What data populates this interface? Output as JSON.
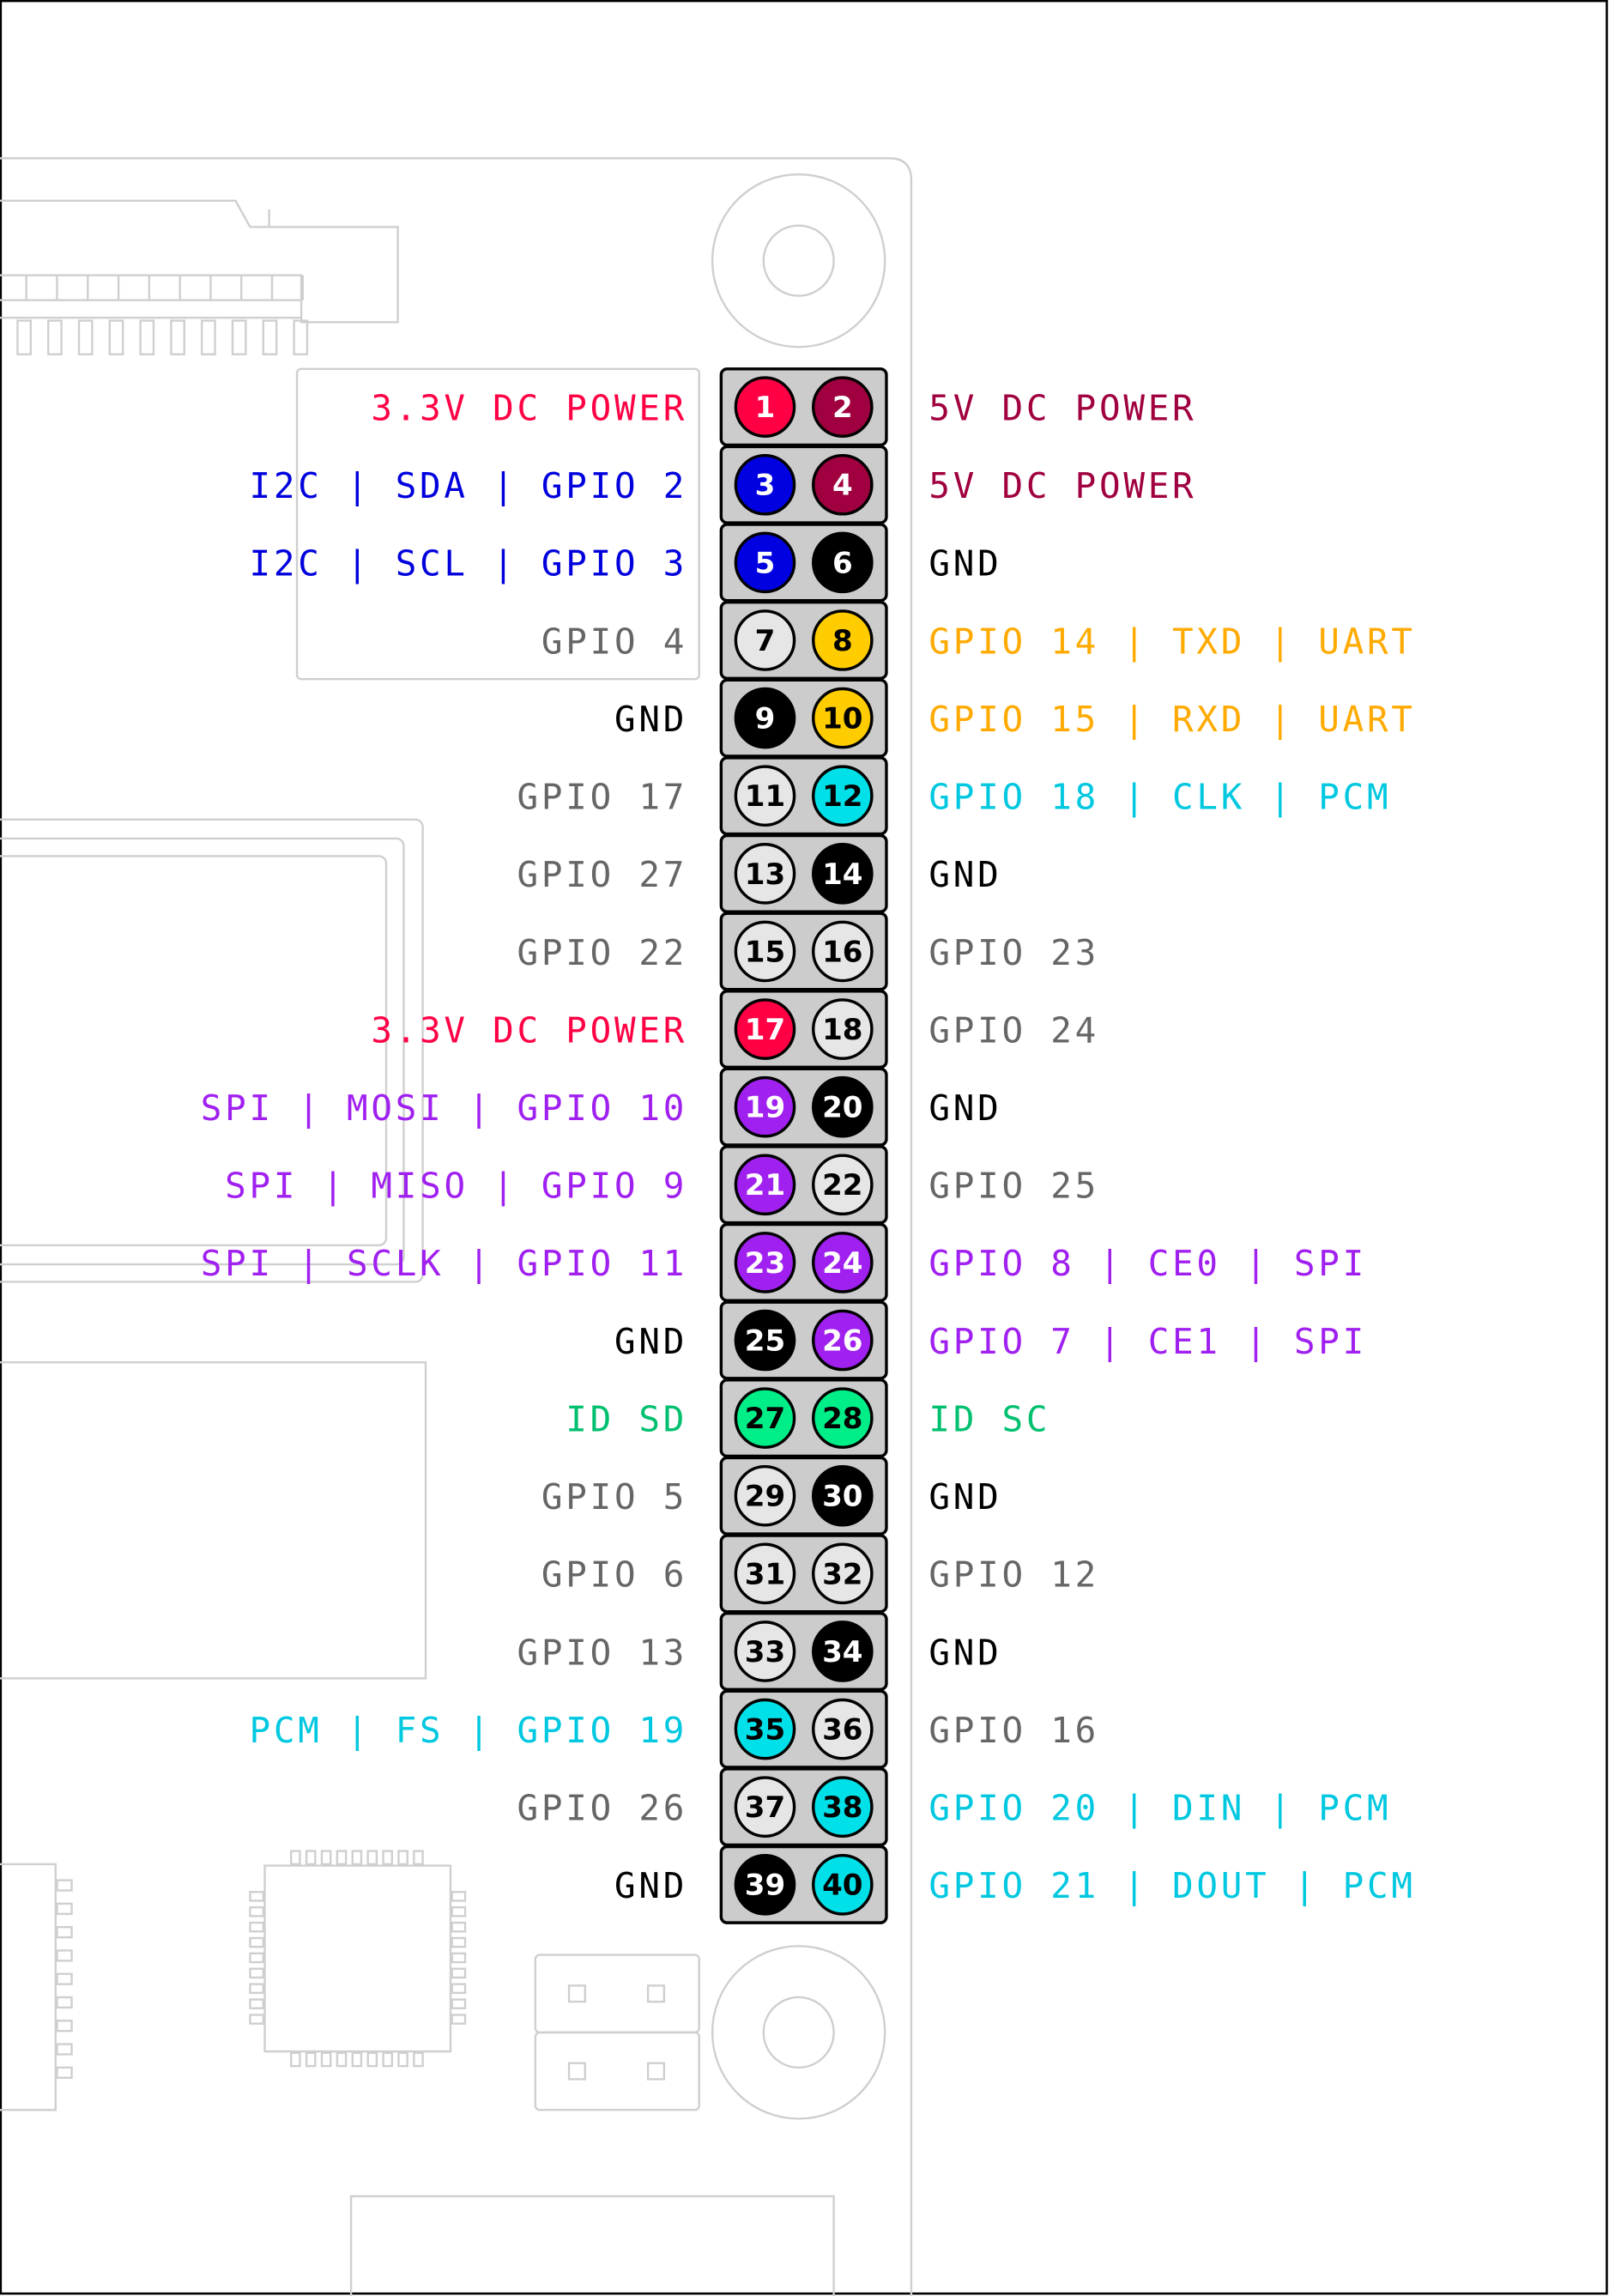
{
  "colors": {
    "power33": "#ff0044",
    "power5": "#a0003f",
    "i2c": "#0000e0",
    "gnd": "#000000",
    "gpio": "#e6e6e6",
    "uart": "#ffcc00",
    "pcm": "#00e0e8",
    "spi": "#a020f0",
    "id": "#00ee88",
    "header_bg": "#cccccc"
  },
  "text_colors": {
    "power33": "#ff0044",
    "power5": "#a0003f",
    "i2c": "#0000dd",
    "gnd": "#000000",
    "gpio": "#666666",
    "uart": "#ffaa00",
    "pcm": "#00c8e0",
    "spi": "#a020f0",
    "id": "#00c070"
  },
  "pins": [
    {
      "left": {
        "num": "1",
        "label": "3.3V DC POWER",
        "type": "power33"
      },
      "right": {
        "num": "2",
        "label": "5V DC POWER",
        "type": "power5"
      }
    },
    {
      "left": {
        "num": "3",
        "label": "I2C | SDA | GPIO 2",
        "type": "i2c"
      },
      "right": {
        "num": "4",
        "label": "5V DC POWER",
        "type": "power5"
      }
    },
    {
      "left": {
        "num": "5",
        "label": "I2C | SCL | GPIO 3",
        "type": "i2c"
      },
      "right": {
        "num": "6",
        "label": "GND",
        "type": "gnd"
      }
    },
    {
      "left": {
        "num": "7",
        "label": "GPIO 4",
        "type": "gpio"
      },
      "right": {
        "num": "8",
        "label": "GPIO 14 | TXD | UART",
        "type": "uart"
      }
    },
    {
      "left": {
        "num": "9",
        "label": "GND",
        "type": "gnd"
      },
      "right": {
        "num": "10",
        "label": "GPIO 15 | RXD | UART",
        "type": "uart"
      }
    },
    {
      "left": {
        "num": "11",
        "label": "GPIO 17",
        "type": "gpio"
      },
      "right": {
        "num": "12",
        "label": "GPIO 18 | CLK | PCM",
        "type": "pcm"
      }
    },
    {
      "left": {
        "num": "13",
        "label": "GPIO 27",
        "type": "gpio"
      },
      "right": {
        "num": "14",
        "label": "GND",
        "type": "gnd"
      }
    },
    {
      "left": {
        "num": "15",
        "label": "GPIO 22",
        "type": "gpio"
      },
      "right": {
        "num": "16",
        "label": "GPIO 23",
        "type": "gpio"
      }
    },
    {
      "left": {
        "num": "17",
        "label": "3.3V DC POWER",
        "type": "power33"
      },
      "right": {
        "num": "18",
        "label": "GPIO 24",
        "type": "gpio"
      }
    },
    {
      "left": {
        "num": "19",
        "label": "SPI | MOSI | GPIO 10",
        "type": "spi"
      },
      "right": {
        "num": "20",
        "label": "GND",
        "type": "gnd"
      }
    },
    {
      "left": {
        "num": "21",
        "label": "SPI | MISO | GPIO 9",
        "type": "spi"
      },
      "right": {
        "num": "22",
        "label": "GPIO 25",
        "type": "gpio"
      }
    },
    {
      "left": {
        "num": "23",
        "label": "SPI | SCLK | GPIO 11",
        "type": "spi"
      },
      "right": {
        "num": "24",
        "label": "GPIO 8 | CE0 | SPI",
        "type": "spi"
      }
    },
    {
      "left": {
        "num": "25",
        "label": "GND",
        "type": "gnd"
      },
      "right": {
        "num": "26",
        "label": "GPIO 7 | CE1 | SPI",
        "type": "spi"
      }
    },
    {
      "left": {
        "num": "27",
        "label": "ID SD",
        "type": "id"
      },
      "right": {
        "num": "28",
        "label": "ID SC",
        "type": "id"
      }
    },
    {
      "left": {
        "num": "29",
        "label": "GPIO 5",
        "type": "gpio"
      },
      "right": {
        "num": "30",
        "label": "GND",
        "type": "gnd"
      }
    },
    {
      "left": {
        "num": "31",
        "label": "GPIO 6",
        "type": "gpio"
      },
      "right": {
        "num": "32",
        "label": "GPIO 12",
        "type": "gpio"
      }
    },
    {
      "left": {
        "num": "33",
        "label": "GPIO 13",
        "type": "gpio"
      },
      "right": {
        "num": "34",
        "label": "GND",
        "type": "gnd"
      }
    },
    {
      "left": {
        "num": "35",
        "label": "PCM | FS | GPIO 19",
        "type": "pcm"
      },
      "right": {
        "num": "36",
        "label": "GPIO 16",
        "type": "gpio"
      }
    },
    {
      "left": {
        "num": "37",
        "label": "GPIO 26",
        "type": "gpio"
      },
      "right": {
        "num": "38",
        "label": "GPIO 20 | DIN | PCM",
        "type": "pcm"
      }
    },
    {
      "left": {
        "num": "39",
        "label": "GND",
        "type": "gnd"
      },
      "right": {
        "num": "40",
        "label": "GPIO 21 | DOUT | PCM",
        "type": "pcm"
      }
    }
  ]
}
